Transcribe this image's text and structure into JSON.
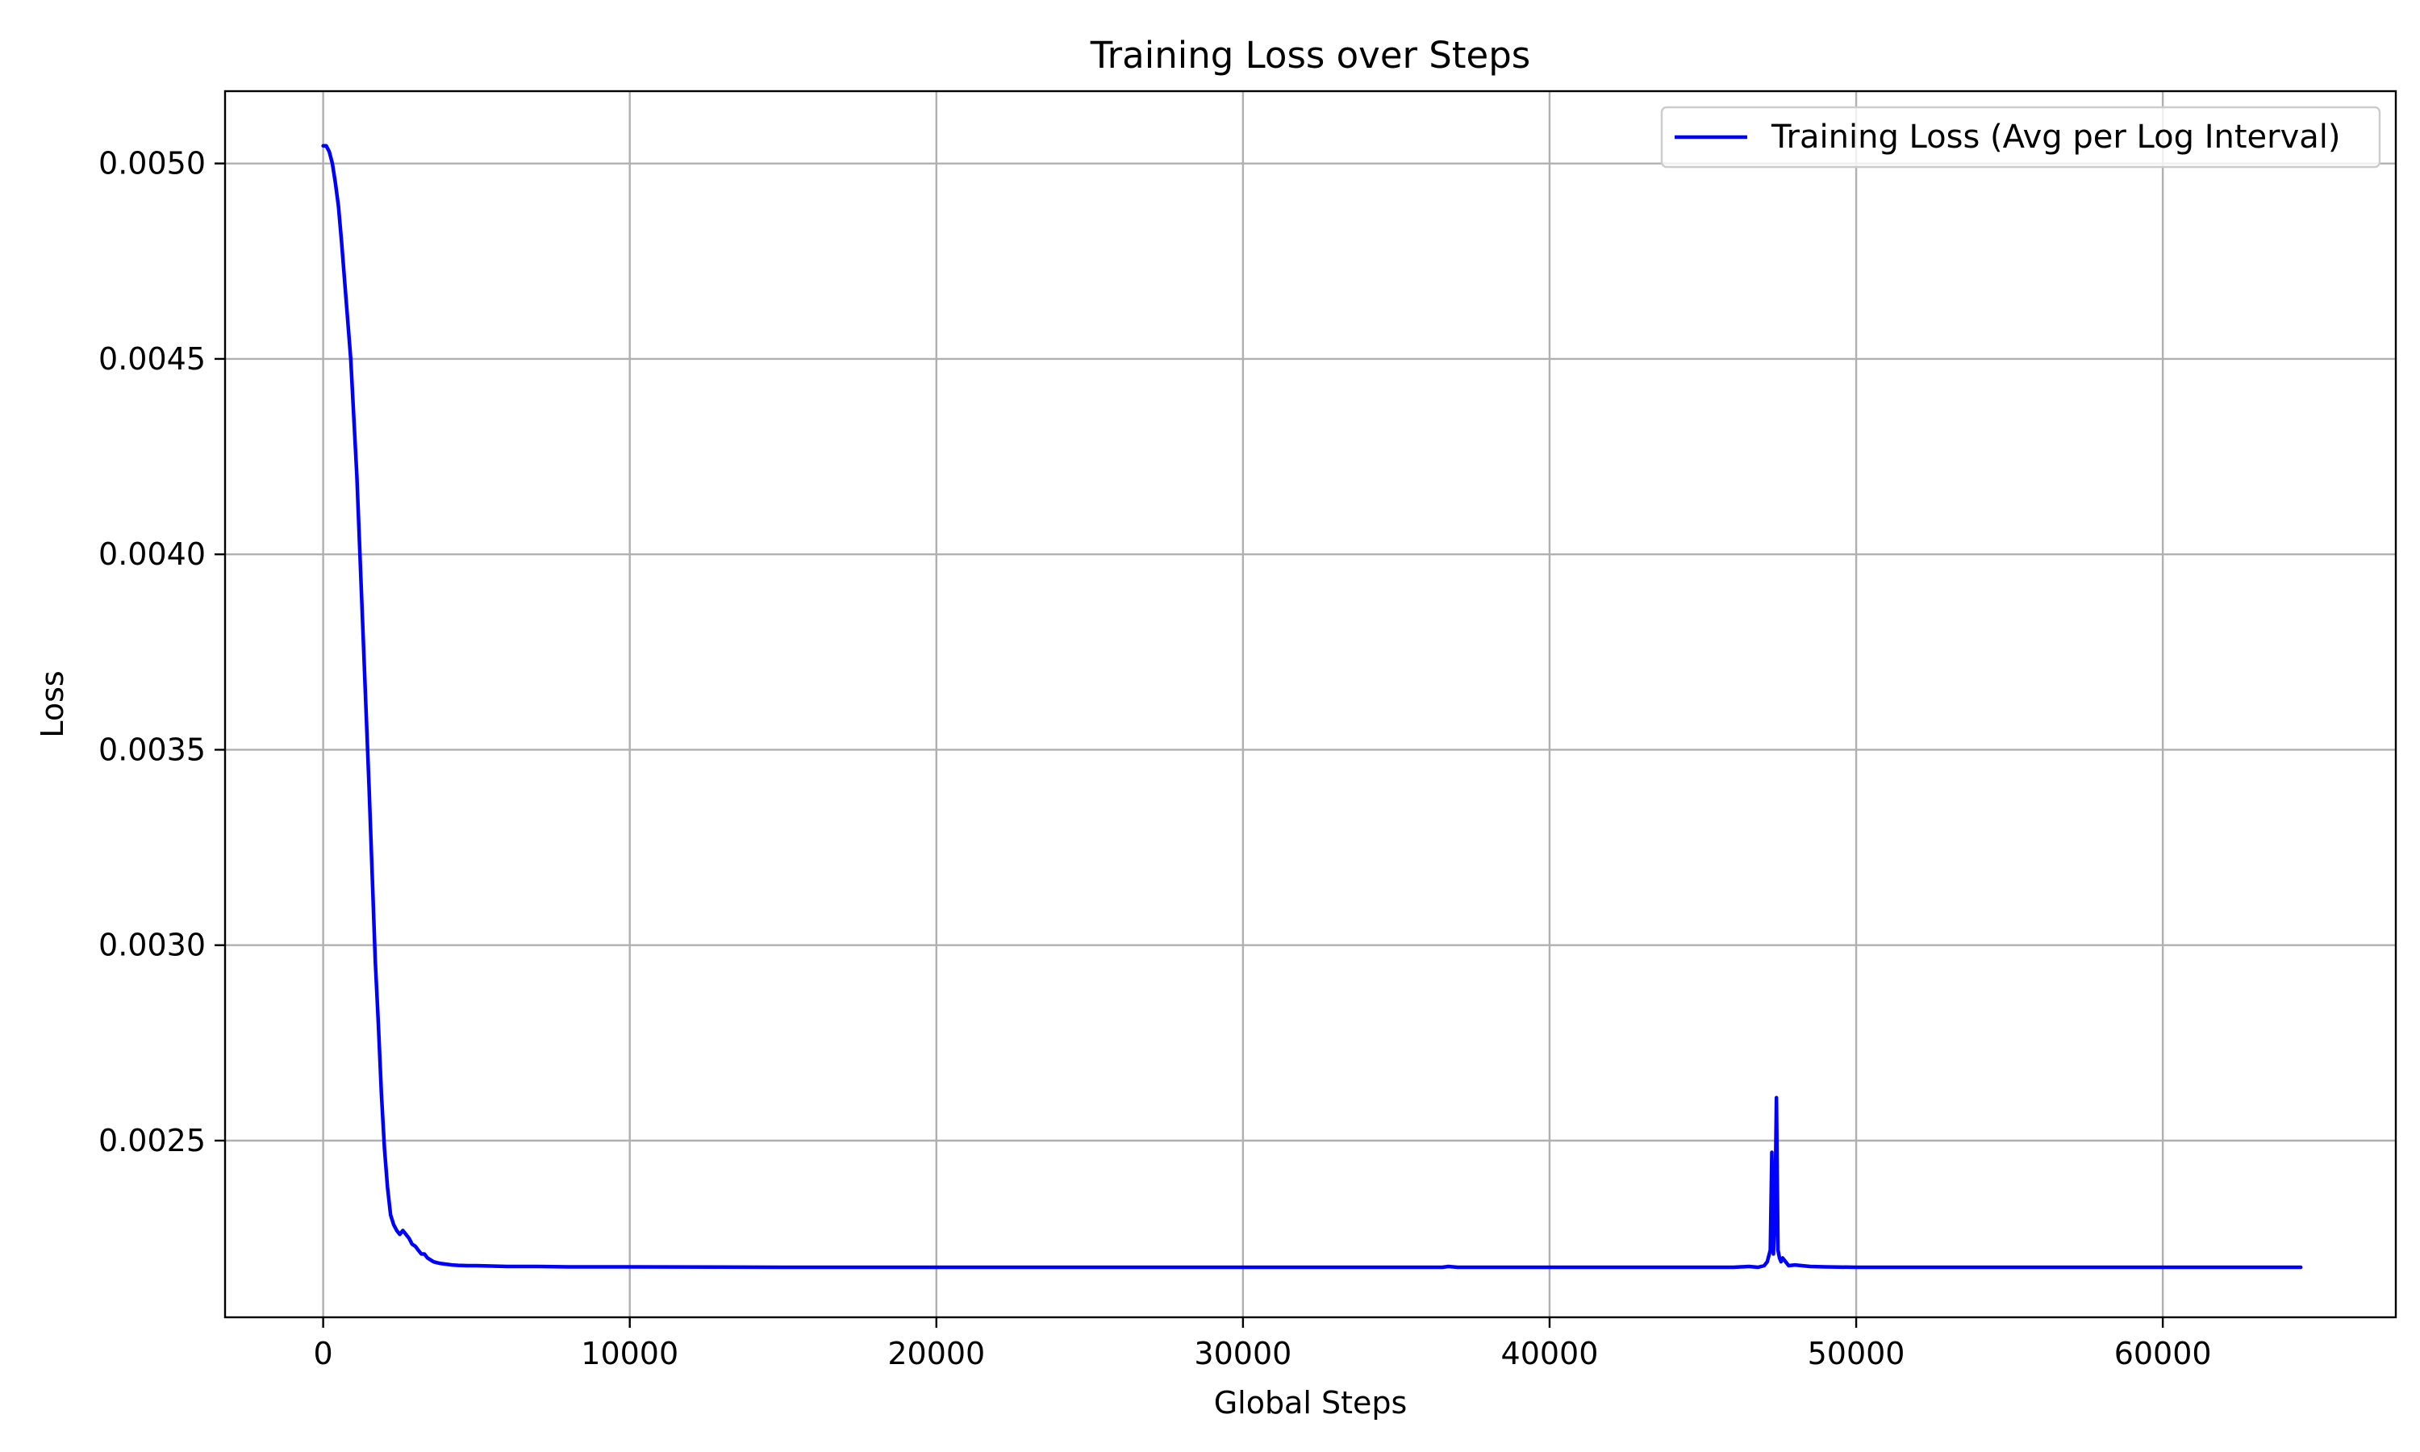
{
  "chart_data": {
    "type": "line",
    "title": "Training Loss over Steps",
    "xlabel": "Global Steps",
    "ylabel": "Loss",
    "xlim": [
      -3200,
      67600
    ],
    "ylim": [
      0.002048,
      0.005185
    ],
    "x_ticks": [
      0,
      10000,
      20000,
      30000,
      40000,
      50000,
      60000
    ],
    "x_tick_labels": [
      "0",
      "10000",
      "20000",
      "30000",
      "40000",
      "50000",
      "60000"
    ],
    "y_ticks": [
      0.0025,
      0.003,
      0.0035,
      0.004,
      0.0045,
      0.005
    ],
    "y_tick_labels": [
      "0.0025",
      "0.0030",
      "0.0035",
      "0.0040",
      "0.0045",
      "0.0050"
    ],
    "grid": true,
    "legend_position": "top-right",
    "series": [
      {
        "name": "Training Loss (Avg per Log Interval)",
        "color": "#0000ff",
        "x": [
          0,
          100,
          200,
          300,
          400,
          500,
          600,
          700,
          800,
          900,
          1000,
          1100,
          1200,
          1300,
          1400,
          1500,
          1600,
          1700,
          1800,
          1900,
          2000,
          2100,
          2200,
          2300,
          2400,
          2500,
          2600,
          2700,
          2800,
          2900,
          3000,
          3100,
          3200,
          3300,
          3400,
          3500,
          3600,
          3700,
          3800,
          4000,
          4200,
          4400,
          4700,
          5000,
          5500,
          6000,
          7000,
          8000,
          10000,
          15000,
          20000,
          25000,
          30000,
          35000,
          36500,
          36700,
          37000,
          40000,
          45000,
          46000,
          46500,
          46800,
          47000,
          47100,
          47200,
          47250,
          47300,
          47350,
          47400,
          47450,
          47500,
          47550,
          47600,
          47700,
          47800,
          48000,
          48500,
          49000,
          50000,
          55000,
          60000,
          64500
        ],
        "y": [
          0.005045,
          0.005045,
          0.00503,
          0.005,
          0.00495,
          0.00489,
          0.0048,
          0.0047,
          0.0046,
          0.0045,
          0.00435,
          0.0042,
          0.004,
          0.0038,
          0.0036,
          0.0034,
          0.00318,
          0.00296,
          0.0028,
          0.00262,
          0.00248,
          0.00238,
          0.00231,
          0.002285,
          0.00227,
          0.00226,
          0.00227,
          0.00226,
          0.00225,
          0.002235,
          0.00223,
          0.00222,
          0.00221,
          0.00221,
          0.0022,
          0.002195,
          0.00219,
          0.002188,
          0.002186,
          0.002184,
          0.002182,
          0.002181,
          0.00218,
          0.00218,
          0.002179,
          0.002178,
          0.002178,
          0.002177,
          0.002177,
          0.002176,
          0.002176,
          0.002176,
          0.002176,
          0.002176,
          0.002176,
          0.002178,
          0.002176,
          0.002176,
          0.002176,
          0.002176,
          0.002178,
          0.002176,
          0.00218,
          0.00219,
          0.00222,
          0.00247,
          0.00221,
          0.0023,
          0.00261,
          0.00222,
          0.0022,
          0.00219,
          0.0022,
          0.00219,
          0.00218,
          0.002182,
          0.002178,
          0.002177,
          0.002176,
          0.002176,
          0.002176,
          0.002176
        ]
      }
    ]
  }
}
